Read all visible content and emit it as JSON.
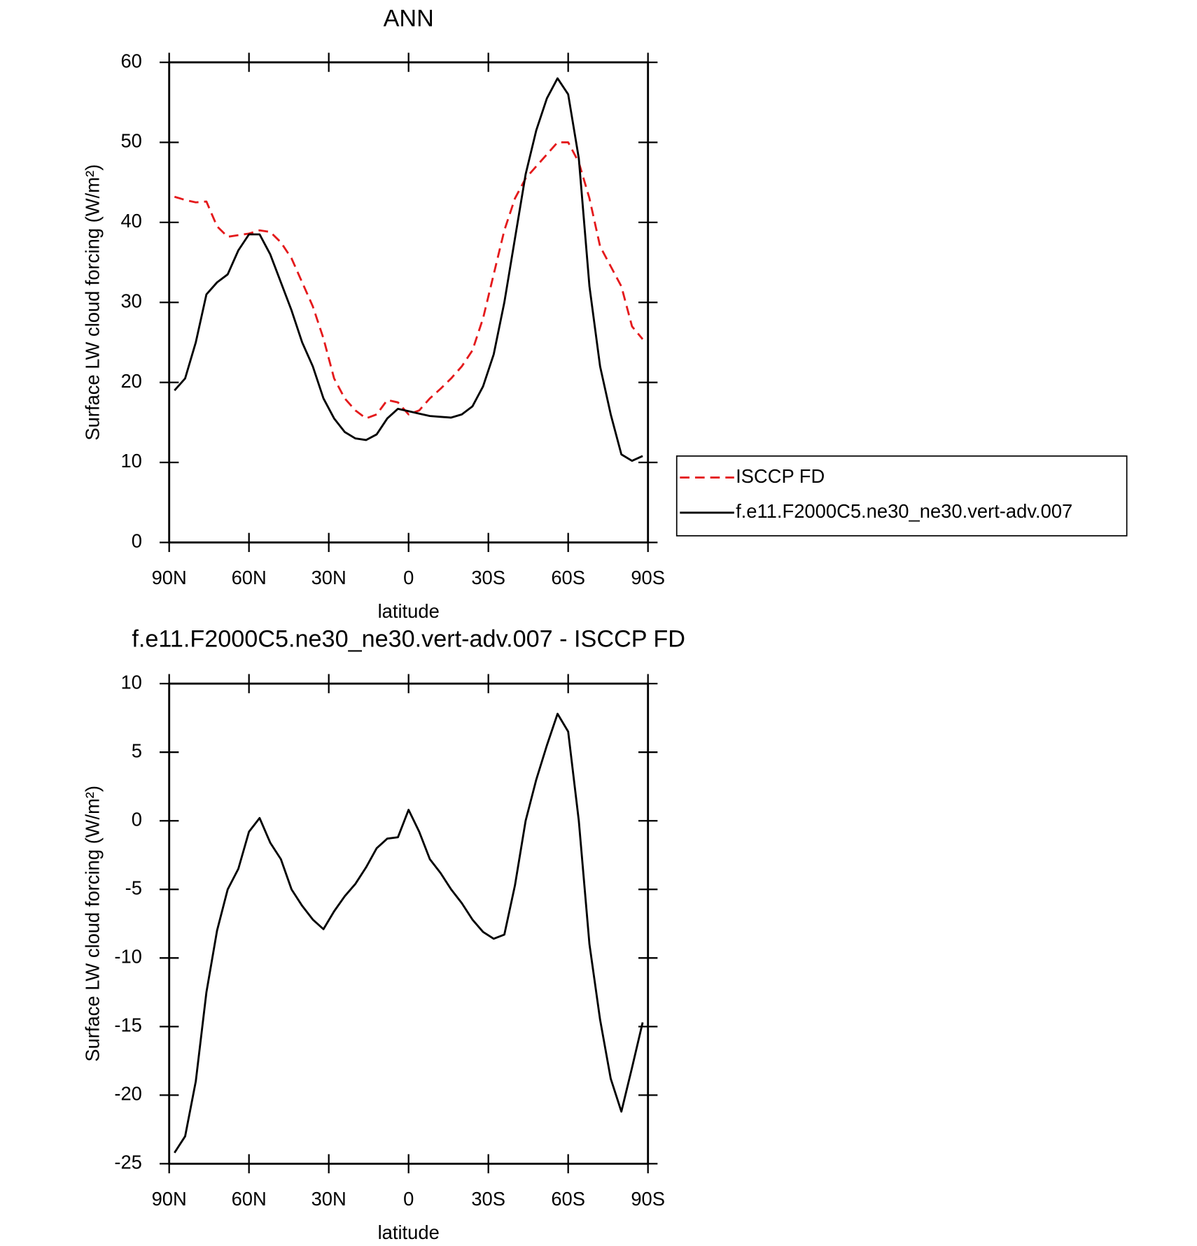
{
  "chart_data": [
    {
      "type": "line",
      "title": "ANN",
      "xlabel": "latitude",
      "ylabel": "Surface LW cloud forcing (W/m²)",
      "x": [
        88,
        84,
        80,
        76,
        72,
        68,
        64,
        60,
        56,
        52,
        48,
        44,
        40,
        36,
        32,
        28,
        24,
        20,
        16,
        12,
        8,
        4,
        0,
        -4,
        -8,
        -12,
        -16,
        -20,
        -24,
        -28,
        -32,
        -36,
        -40,
        -44,
        -48,
        -52,
        -56,
        -60,
        -64,
        -68,
        -72,
        -76,
        -80,
        -84,
        -88
      ],
      "series": [
        {
          "name": "ISCCP FD",
          "color": "#e41a1c",
          "line_style": "dashed",
          "values": [
            43.2,
            42.8,
            42.5,
            42.6,
            39.5,
            38.2,
            38.4,
            38.6,
            39,
            38.8,
            37.5,
            35.5,
            32.5,
            29.5,
            25.5,
            20.5,
            18,
            16.5,
            15.5,
            16,
            17.8,
            17.5,
            16,
            16.5,
            18,
            19.2,
            20.5,
            22,
            24,
            28,
            33.5,
            39,
            43,
            45.5,
            47,
            48.5,
            50,
            50,
            47.5,
            43,
            37,
            34.5,
            32,
            27,
            25.4
          ]
        },
        {
          "name": "f.e11.F2000C5.ne30_ne30.vert-adv.007",
          "color": "#000000",
          "line_style": "solid",
          "values": [
            19,
            20.5,
            25,
            31,
            32.5,
            33.5,
            36.5,
            38.5,
            38.5,
            36,
            32.5,
            29,
            25,
            22,
            18,
            15.5,
            13.8,
            13,
            12.8,
            13.5,
            15.5,
            16.7,
            16.4,
            16.1,
            15.8,
            15.7,
            15.6,
            16,
            17,
            19.5,
            23.5,
            30,
            38,
            46,
            51.5,
            55.5,
            58,
            56,
            48,
            32,
            22,
            16,
            11,
            10.2,
            10.8
          ]
        }
      ],
      "xlim": [
        90,
        -90
      ],
      "xticks": [
        {
          "value": 90,
          "label": "90N"
        },
        {
          "value": 60,
          "label": "60N"
        },
        {
          "value": 30,
          "label": "30N"
        },
        0,
        {
          "value": -30,
          "label": "30S"
        },
        {
          "value": -60,
          "label": "60S"
        },
        {
          "value": -90,
          "label": "90S"
        }
      ],
      "ylim": [
        0,
        60
      ],
      "yticks": [
        0,
        10,
        20,
        30,
        40,
        50,
        60
      ],
      "legend": "right"
    },
    {
      "type": "line",
      "title": "f.e11.F2000C5.ne30_ne30.vert-adv.007 - ISCCP FD",
      "xlabel": "latitude",
      "ylabel": "Surface LW cloud forcing (W/m²)",
      "x": [
        88,
        84,
        80,
        76,
        72,
        68,
        64,
        60,
        56,
        52,
        48,
        44,
        40,
        36,
        32,
        28,
        24,
        20,
        16,
        12,
        8,
        4,
        0,
        -4,
        -8,
        -12,
        -16,
        -20,
        -24,
        -28,
        -32,
        -36,
        -40,
        -44,
        -48,
        -52,
        -56,
        -60,
        -64,
        -68,
        -72,
        -76,
        -80,
        -84,
        -88
      ],
      "color": "#000000",
      "values": [
        -24.2,
        -23,
        -19,
        -12.5,
        -8,
        -5,
        -3.5,
        -0.8,
        0.2,
        -1.6,
        -2.8,
        -5,
        -6.2,
        -7.2,
        -7.9,
        -6.6,
        -5.5,
        -4.6,
        -3.4,
        -2,
        -1.3,
        -1.2,
        0.8,
        -0.8,
        -2.8,
        -3.8,
        -5,
        -6,
        -7.2,
        -8.1,
        -8.6,
        -8.3,
        -4.7,
        0,
        3,
        5.5,
        7.8,
        6.5,
        0,
        -9,
        -14.5,
        -18.8,
        -21.2,
        -18,
        -14.7
      ],
      "xlim": [
        90,
        -90
      ],
      "xticks": [
        {
          "value": 90,
          "label": "90N"
        },
        {
          "value": 60,
          "label": "60N"
        },
        {
          "value": 30,
          "label": "30N"
        },
        0,
        {
          "value": -30,
          "label": "30S"
        },
        {
          "value": -60,
          "label": "60S"
        },
        {
          "value": -90,
          "label": "90S"
        }
      ],
      "ylim": [
        -25,
        10
      ],
      "yticks": [
        -25,
        -20,
        -15,
        -10,
        -5,
        0,
        5,
        10
      ]
    }
  ]
}
